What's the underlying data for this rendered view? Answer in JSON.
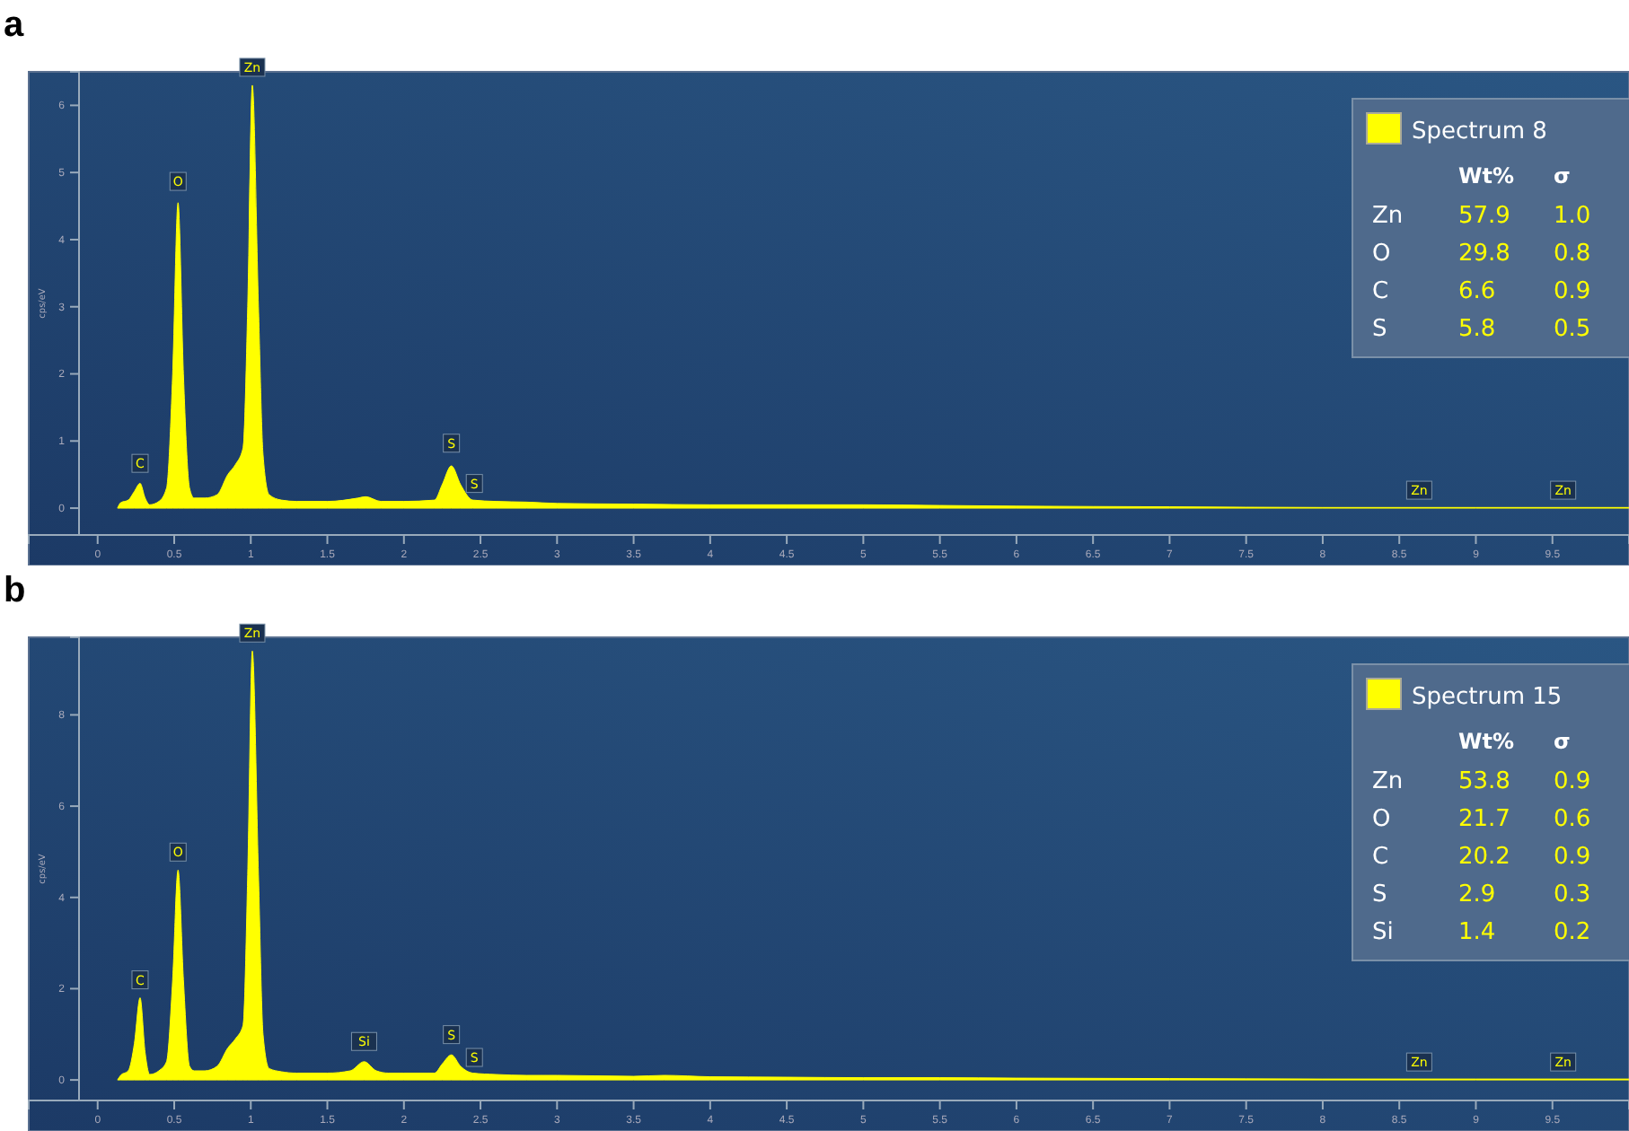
{
  "chart_data": [
    {
      "type": "area",
      "title": "a",
      "ylabel": "cps/eV",
      "xlim": [
        -0.45,
        10
      ],
      "ylim": [
        -0.4,
        6.5
      ],
      "xticks": [
        0,
        0.5,
        1,
        1.5,
        2,
        2.5,
        3,
        3.5,
        4,
        4.5,
        5,
        5.5,
        6,
        6.5,
        7,
        7.5,
        8,
        8.5,
        9,
        9.5
      ],
      "yticks": [
        0,
        1,
        2,
        3,
        4,
        5,
        6
      ],
      "legend": "top right",
      "grid": false,
      "series": [
        {
          "name": "Spectrum 8",
          "color": "#ffff00",
          "x": [
            0.13,
            0.15,
            0.2,
            0.24,
            0.277,
            0.31,
            0.34,
            0.4,
            0.45,
            0.49,
            0.525,
            0.56,
            0.6,
            0.63,
            0.7,
            0.78,
            0.85,
            0.9,
            0.95,
            0.98,
            1.01,
            1.05,
            1.08,
            1.12,
            1.2,
            1.3,
            1.5,
            1.7,
            1.75,
            1.85,
            2.0,
            2.2,
            2.25,
            2.31,
            2.37,
            2.45,
            2.6,
            2.8,
            3,
            3.5,
            4,
            4.5,
            5,
            5.5,
            6,
            7,
            8,
            9,
            10
          ],
          "values": [
            0,
            0.08,
            0.12,
            0.25,
            0.37,
            0.15,
            0.05,
            0.1,
            0.3,
            2,
            4.55,
            2,
            0.3,
            0.15,
            0.15,
            0.2,
            0.5,
            0.65,
            0.9,
            3,
            6.3,
            3,
            0.8,
            0.2,
            0.12,
            0.1,
            0.1,
            0.15,
            0.17,
            0.1,
            0.1,
            0.12,
            0.35,
            0.63,
            0.35,
            0.12,
            0.1,
            0.09,
            0.07,
            0.06,
            0.05,
            0.05,
            0.05,
            0.04,
            0.03,
            0.02,
            0.01,
            0.01,
            0.01
          ]
        }
      ],
      "annotations": [
        {
          "text": "C",
          "x": 0.277,
          "y": 0.4
        },
        {
          "text": "O",
          "x": 0.525,
          "y": 4.6
        },
        {
          "text": "Zn",
          "x": 1.01,
          "y": 6.3
        },
        {
          "text": "S",
          "x": 2.31,
          "y": 0.7
        },
        {
          "text": "S",
          "x": 2.46,
          "y": 0.1
        },
        {
          "text": "Zn",
          "x": 8.63,
          "y": 0
        },
        {
          "text": "Zn",
          "x": 9.57,
          "y": 0
        },
        "Wt%",
        "σ",
        "Zn",
        "57.9",
        "1.0",
        "O",
        "29.8",
        "0.8",
        "C",
        "6.6",
        "0.9",
        "S",
        "5.8",
        "0.5"
      ]
    },
    {
      "type": "area",
      "title": "b",
      "ylabel": "cps/eV",
      "xlim": [
        -0.45,
        10
      ],
      "ylim": [
        -0.45,
        9.7
      ],
      "xticks": [
        0,
        0.5,
        1,
        1.5,
        2,
        2.5,
        3,
        3.5,
        4,
        4.5,
        5,
        5.5,
        6,
        6.5,
        7,
        7.5,
        8,
        8.5,
        9,
        9.5
      ],
      "yticks": [
        0,
        2,
        4,
        6,
        8
      ],
      "legend": "top right",
      "grid": false,
      "series": [
        {
          "name": "Spectrum 15",
          "color": "#ffff00",
          "x": [
            0.13,
            0.15,
            0.2,
            0.24,
            0.277,
            0.31,
            0.34,
            0.4,
            0.45,
            0.49,
            0.525,
            0.56,
            0.6,
            0.63,
            0.7,
            0.78,
            0.85,
            0.9,
            0.95,
            0.98,
            1.01,
            1.05,
            1.08,
            1.12,
            1.2,
            1.3,
            1.5,
            1.65,
            1.74,
            1.82,
            1.9,
            2.0,
            2.2,
            2.25,
            2.31,
            2.37,
            2.45,
            2.6,
            2.8,
            3,
            3.5,
            3.7,
            4,
            4.5,
            5,
            5.5,
            6,
            7,
            8,
            9,
            10
          ],
          "values": [
            0,
            0.1,
            0.2,
            0.8,
            1.8,
            0.6,
            0.12,
            0.2,
            0.4,
            2.2,
            4.6,
            2.2,
            0.3,
            0.2,
            0.2,
            0.3,
            0.7,
            0.9,
            1.2,
            4.5,
            9.4,
            4.5,
            1,
            0.25,
            0.18,
            0.15,
            0.15,
            0.2,
            0.4,
            0.2,
            0.15,
            0.15,
            0.15,
            0.35,
            0.55,
            0.3,
            0.15,
            0.12,
            0.1,
            0.1,
            0.08,
            0.1,
            0.07,
            0.06,
            0.05,
            0.05,
            0.04,
            0.03,
            0.02,
            0.02,
            0.02
          ]
        }
      ],
      "annotations": [
        {
          "text": "C",
          "x": 0.277,
          "y": 1.8
        },
        {
          "text": "O",
          "x": 0.525,
          "y": 4.6
        },
        {
          "text": "Zn",
          "x": 1.01,
          "y": 9.4
        },
        {
          "text": "Si",
          "x": 1.74,
          "y": 0.45
        },
        {
          "text": "S",
          "x": 2.31,
          "y": 0.6
        },
        {
          "text": "S",
          "x": 2.46,
          "y": 0.1
        },
        {
          "text": "Zn",
          "x": 8.63,
          "y": 0
        },
        {
          "text": "Zn",
          "x": 9.57,
          "y": 0
        },
        "Wt%",
        "σ",
        "Zn",
        "53.8",
        "0.9",
        "O",
        "21.7",
        "0.6",
        "C",
        "20.2",
        "0.9",
        "S",
        "2.9",
        "0.3",
        "Si",
        "1.4",
        "0.2"
      ]
    }
  ]
}
